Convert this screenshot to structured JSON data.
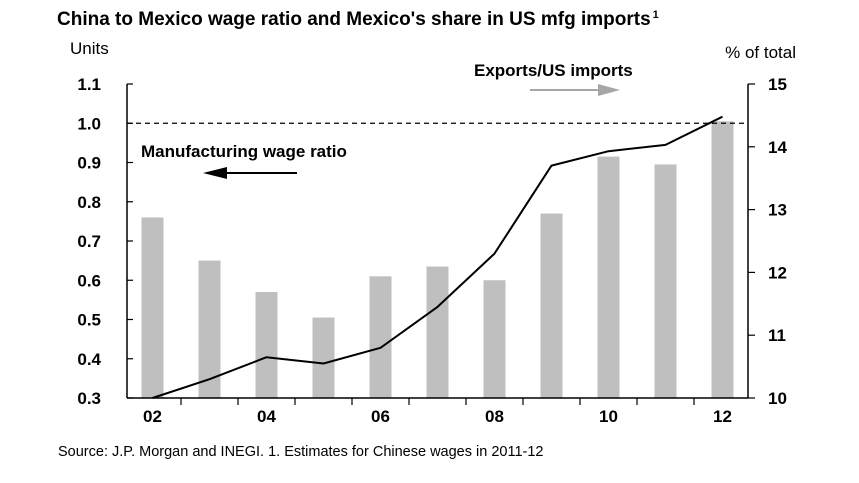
{
  "chart_data": {
    "type": "bar+line",
    "title": "China to Mexico wage ratio and Mexico's share in US mfg imports",
    "title_footnote_marker": "1",
    "left_axis_label": "Units",
    "right_axis_label": "% of total",
    "x": [
      2002,
      2003,
      2004,
      2005,
      2006,
      2007,
      2008,
      2009,
      2010,
      2011,
      2012
    ],
    "x_tick_labels": [
      "02",
      "04",
      "06",
      "08",
      "10",
      "12"
    ],
    "x_tick_label_years": [
      2002,
      2004,
      2006,
      2008,
      2010,
      2012
    ],
    "left_ylim": [
      0.3,
      1.1
    ],
    "left_ticks": [
      "0.3",
      "0.4",
      "0.5",
      "0.6",
      "0.7",
      "0.8",
      "0.9",
      "1.0",
      "1.1"
    ],
    "right_ylim": [
      10,
      15
    ],
    "right_ticks": [
      "10",
      "11",
      "12",
      "13",
      "14",
      "15"
    ],
    "bars": {
      "name": "Manufacturing wage ratio",
      "axis": "left",
      "color": "#bfbfbf",
      "values": [
        0.76,
        0.65,
        0.57,
        0.505,
        0.61,
        0.635,
        0.6,
        0.77,
        0.915,
        0.895,
        1.005
      ]
    },
    "line": {
      "name": "Exports/US imports",
      "axis": "right",
      "color": "#000000",
      "values": [
        10.0,
        10.3,
        10.65,
        10.55,
        10.8,
        11.45,
        12.3,
        13.7,
        13.93,
        14.03,
        14.48
      ]
    },
    "reference_line": {
      "axis": "left",
      "value": 1.0,
      "style": "dashed"
    },
    "annotations": {
      "bars_label": "Manufacturing wage ratio",
      "line_label": "Exports/US imports"
    },
    "source": "Source: J.P. Morgan and INEGI. 1. Estimates for Chinese wages in 2011-12"
  }
}
